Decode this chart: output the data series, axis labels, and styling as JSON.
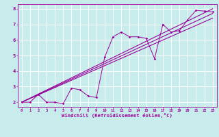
{
  "xlabel": "Windchill (Refroidissement éolien,°C)",
  "bg_color": "#c8ecec",
  "line_color": "#990099",
  "grid_color": "#ffffff",
  "xlim": [
    -0.5,
    23.5
  ],
  "ylim": [
    1.7,
    8.3
  ],
  "xticks": [
    0,
    1,
    2,
    3,
    4,
    5,
    6,
    7,
    8,
    9,
    10,
    11,
    12,
    13,
    14,
    15,
    16,
    17,
    18,
    19,
    20,
    21,
    22,
    23
  ],
  "yticks": [
    2,
    3,
    4,
    5,
    6,
    7,
    8
  ],
  "scatter_x": [
    0,
    1,
    2,
    3,
    4,
    5,
    6,
    7,
    8,
    9,
    10,
    11,
    12,
    13,
    14,
    15,
    16,
    17,
    18,
    19,
    20,
    21,
    22,
    23
  ],
  "scatter_y": [
    2.0,
    2.0,
    2.5,
    2.0,
    2.0,
    1.9,
    2.9,
    2.8,
    2.4,
    2.3,
    4.9,
    6.2,
    6.5,
    6.2,
    6.2,
    6.1,
    4.8,
    7.0,
    6.5,
    6.6,
    7.3,
    7.9,
    7.85,
    7.8
  ],
  "line1_x": [
    0,
    23
  ],
  "line1_y": [
    2.0,
    8.0
  ],
  "line2_x": [
    0,
    23
  ],
  "line2_y": [
    2.0,
    7.7
  ],
  "line3_x": [
    0,
    23
  ],
  "line3_y": [
    2.0,
    7.4
  ]
}
